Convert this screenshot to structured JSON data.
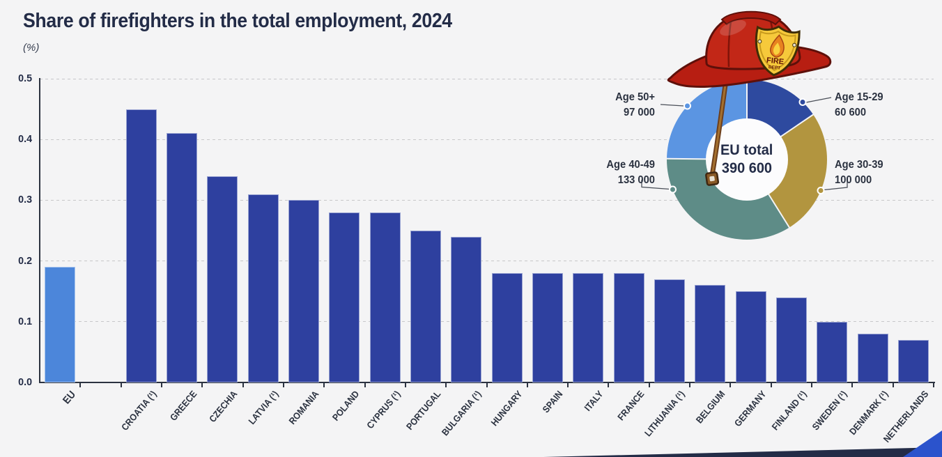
{
  "header": {
    "title": "Share of firefighters in the total employment, 2024",
    "unit": "(%)"
  },
  "colors": {
    "background": "#f4f4f5",
    "title_text": "#232c47",
    "axis_text": "#2b3240",
    "gridline": "#c7c7c9",
    "bar": "#2e409f",
    "bar_highlight": "#4c86da",
    "callout_line": "#4a4f58",
    "footer_band": "#232c47",
    "corner_accent": "#2b53cc"
  },
  "chart_data": [
    {
      "type": "bar",
      "title": "Share of firefighters in the total employment, 2024",
      "unit_label": "(%)",
      "ylim": [
        0,
        0.5
      ],
      "yticks": [
        0,
        0.1,
        0.2,
        0.3,
        0.4,
        0.5
      ],
      "grid": "horizontal-dashed",
      "gap_after_first_category": true,
      "highlight_index": 0,
      "footnote_marker": "(¹)",
      "categories": [
        "EU",
        "CROATIA (¹)",
        "GREECE",
        "CZECHIA",
        "LATVIA (¹)",
        "ROMANIA",
        "POLAND",
        "CYPRUS (¹)",
        "PORTUGAL",
        "BULGARIA (¹)",
        "HUNGARY",
        "SPAIN",
        "ITALY",
        "FRANCE",
        "LITHUANIA (¹)",
        "BELGIUM",
        "GERMANY",
        "FINLAND (¹)",
        "SWEDEN (¹)",
        "DENMARK (¹)",
        "NETHERLANDS"
      ],
      "values": [
        0.19,
        0.45,
        0.41,
        0.34,
        0.31,
        0.3,
        0.28,
        0.28,
        0.25,
        0.24,
        0.18,
        0.18,
        0.18,
        0.18,
        0.17,
        0.16,
        0.15,
        0.14,
        0.1,
        0.08,
        0.07
      ]
    },
    {
      "type": "donut",
      "center_label": "EU total",
      "center_value": "390 600",
      "total": 390600,
      "legend_position": "callouts",
      "segments": [
        {
          "label": "Age 15-29",
          "value": 60600,
          "value_label": "60 600",
          "color": "#2e4a9f"
        },
        {
          "label": "Age 30-39",
          "value": 100000,
          "value_label": "100 000",
          "color": "#b2953f"
        },
        {
          "label": "Age 40-49",
          "value": 133000,
          "value_label": "133 000",
          "color": "#5e8c87"
        },
        {
          "label": "Age 50+",
          "value": 97000,
          "value_label": "97 000",
          "color": "#5b95e2"
        }
      ]
    }
  ]
}
